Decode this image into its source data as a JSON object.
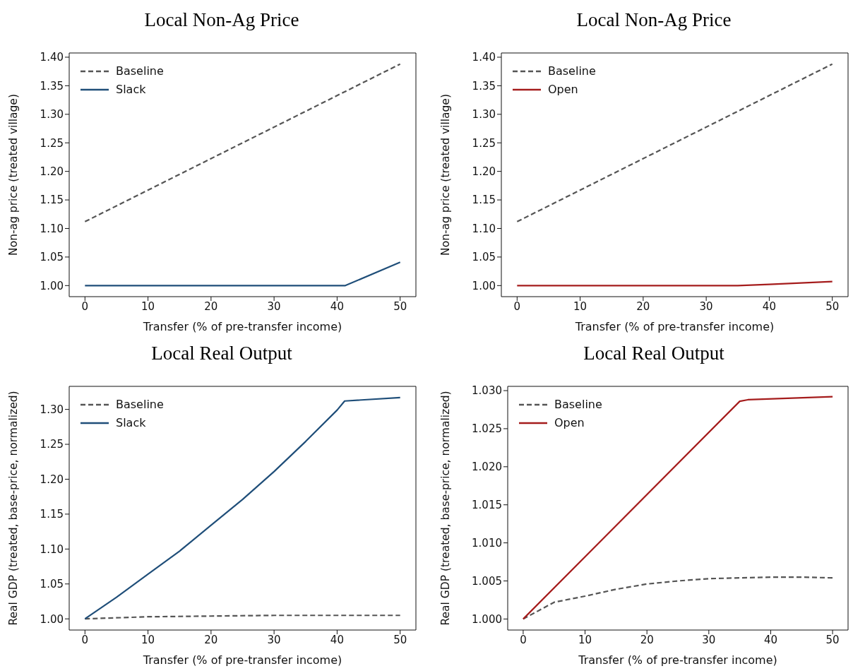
{
  "chart_data": [
    {
      "type": "line",
      "title": "Local Non-Ag Price",
      "xlabel": "Transfer (% of pre-transfer income)",
      "ylabel": "Non-ag price (treated village)",
      "xlim": [
        -2.5,
        52.5
      ],
      "xticks": [
        0,
        10,
        20,
        30,
        40,
        50
      ],
      "ylim": [
        0.9806,
        1.4074
      ],
      "yticks": [
        {
          "value": 1.0,
          "label": "1.00"
        },
        {
          "value": 1.05,
          "label": "1.05"
        },
        {
          "value": 1.1,
          "label": "1.10"
        },
        {
          "value": 1.15,
          "label": "1.15"
        },
        {
          "value": 1.2,
          "label": "1.20"
        },
        {
          "value": 1.25,
          "label": "1.25"
        },
        {
          "value": 1.3,
          "label": "1.30"
        },
        {
          "value": 1.35,
          "label": "1.35"
        },
        {
          "value": 1.4,
          "label": "1.40"
        }
      ],
      "legend": "top left",
      "grid": false,
      "series": [
        {
          "name": "Baseline",
          "color": "#555555",
          "line_style": "dashed",
          "x": [
            0,
            50
          ],
          "values": [
            1.112,
            1.388
          ]
        },
        {
          "name": "Slack",
          "color": "#1f4e79",
          "line_style": "solid",
          "x": [
            0,
            41.3,
            50
          ],
          "values": [
            1.0,
            1.0,
            1.041
          ]
        }
      ]
    },
    {
      "type": "line",
      "title": "Local Non-Ag Price",
      "xlabel": "Transfer (% of pre-transfer income)",
      "ylabel": "Non-ag price (treated village)",
      "xlim": [
        -2.5,
        52.5
      ],
      "xticks": [
        0,
        10,
        20,
        30,
        40,
        50
      ],
      "ylim": [
        0.9806,
        1.4074
      ],
      "yticks": [
        {
          "value": 1.0,
          "label": "1.00"
        },
        {
          "value": 1.05,
          "label": "1.05"
        },
        {
          "value": 1.1,
          "label": "1.10"
        },
        {
          "value": 1.15,
          "label": "1.15"
        },
        {
          "value": 1.2,
          "label": "1.20"
        },
        {
          "value": 1.25,
          "label": "1.25"
        },
        {
          "value": 1.3,
          "label": "1.30"
        },
        {
          "value": 1.35,
          "label": "1.35"
        },
        {
          "value": 1.4,
          "label": "1.40"
        }
      ],
      "legend": "top left",
      "grid": false,
      "series": [
        {
          "name": "Baseline",
          "color": "#555555",
          "line_style": "dashed",
          "x": [
            0,
            50
          ],
          "values": [
            1.112,
            1.388
          ]
        },
        {
          "name": "Open",
          "color": "#a51c1c",
          "line_style": "solid",
          "x": [
            0,
            35,
            40,
            50
          ],
          "values": [
            1.0,
            1.0,
            1.002,
            1.007
          ]
        }
      ]
    },
    {
      "type": "line",
      "title": "Local Real Output",
      "xlabel": "Transfer (% of pre-transfer income)",
      "ylabel": "Real GDP (treated, base-price, normalized)",
      "xlim": [
        -2.5,
        52.5
      ],
      "xticks": [
        0,
        10,
        20,
        30,
        40,
        50
      ],
      "ylim": [
        0.984,
        1.333
      ],
      "yticks": [
        {
          "value": 1.0,
          "label": "1.00"
        },
        {
          "value": 1.05,
          "label": "1.05"
        },
        {
          "value": 1.1,
          "label": "1.10"
        },
        {
          "value": 1.15,
          "label": "1.15"
        },
        {
          "value": 1.2,
          "label": "1.20"
        },
        {
          "value": 1.25,
          "label": "1.25"
        },
        {
          "value": 1.3,
          "label": "1.30"
        }
      ],
      "legend": "top left",
      "grid": false,
      "series": [
        {
          "name": "Baseline",
          "color": "#555555",
          "line_style": "dashed",
          "x": [
            0,
            10,
            20,
            30,
            40,
            50
          ],
          "values": [
            1.0,
            1.003,
            1.004,
            1.005,
            1.005,
            1.005
          ]
        },
        {
          "name": "Slack",
          "color": "#1f4e79",
          "line_style": "solid",
          "x": [
            0,
            5,
            10,
            15,
            20,
            25,
            30,
            35,
            40,
            41.2,
            50
          ],
          "values": [
            1.0,
            1.031,
            1.064,
            1.097,
            1.134,
            1.171,
            1.211,
            1.254,
            1.299,
            1.312,
            1.317
          ]
        }
      ]
    },
    {
      "type": "line",
      "title": "Local Real Output",
      "xlabel": "Transfer (% of pre-transfer income)",
      "ylabel": "Real GDP (treated, base-price, normalized)",
      "xlim": [
        -2.5,
        52.5
      ],
      "xticks": [
        0,
        10,
        20,
        30,
        40,
        50
      ],
      "ylim": [
        0.99855,
        1.03056
      ],
      "yticks": [
        {
          "value": 1.0,
          "label": "1.000"
        },
        {
          "value": 1.005,
          "label": "1.005"
        },
        {
          "value": 1.01,
          "label": "1.010"
        },
        {
          "value": 1.015,
          "label": "1.015"
        },
        {
          "value": 1.02,
          "label": "1.020"
        },
        {
          "value": 1.025,
          "label": "1.025"
        },
        {
          "value": 1.03,
          "label": "1.030"
        }
      ],
      "legend": "top left",
      "grid": false,
      "series": [
        {
          "name": "Baseline",
          "color": "#555555",
          "line_style": "dashed",
          "x": [
            0,
            5,
            10,
            15,
            20,
            25,
            30,
            35,
            40,
            45,
            50
          ],
          "values": [
            1.0,
            1.0022,
            1.003,
            1.0039,
            1.0046,
            1.005,
            1.0053,
            1.0054,
            1.0055,
            1.0055,
            1.0054
          ]
        },
        {
          "name": "Open",
          "color": "#a51c1c",
          "line_style": "solid",
          "x": [
            0,
            35,
            36.3,
            50
          ],
          "values": [
            1.0,
            1.0286,
            1.0288,
            1.0292
          ]
        }
      ]
    }
  ]
}
